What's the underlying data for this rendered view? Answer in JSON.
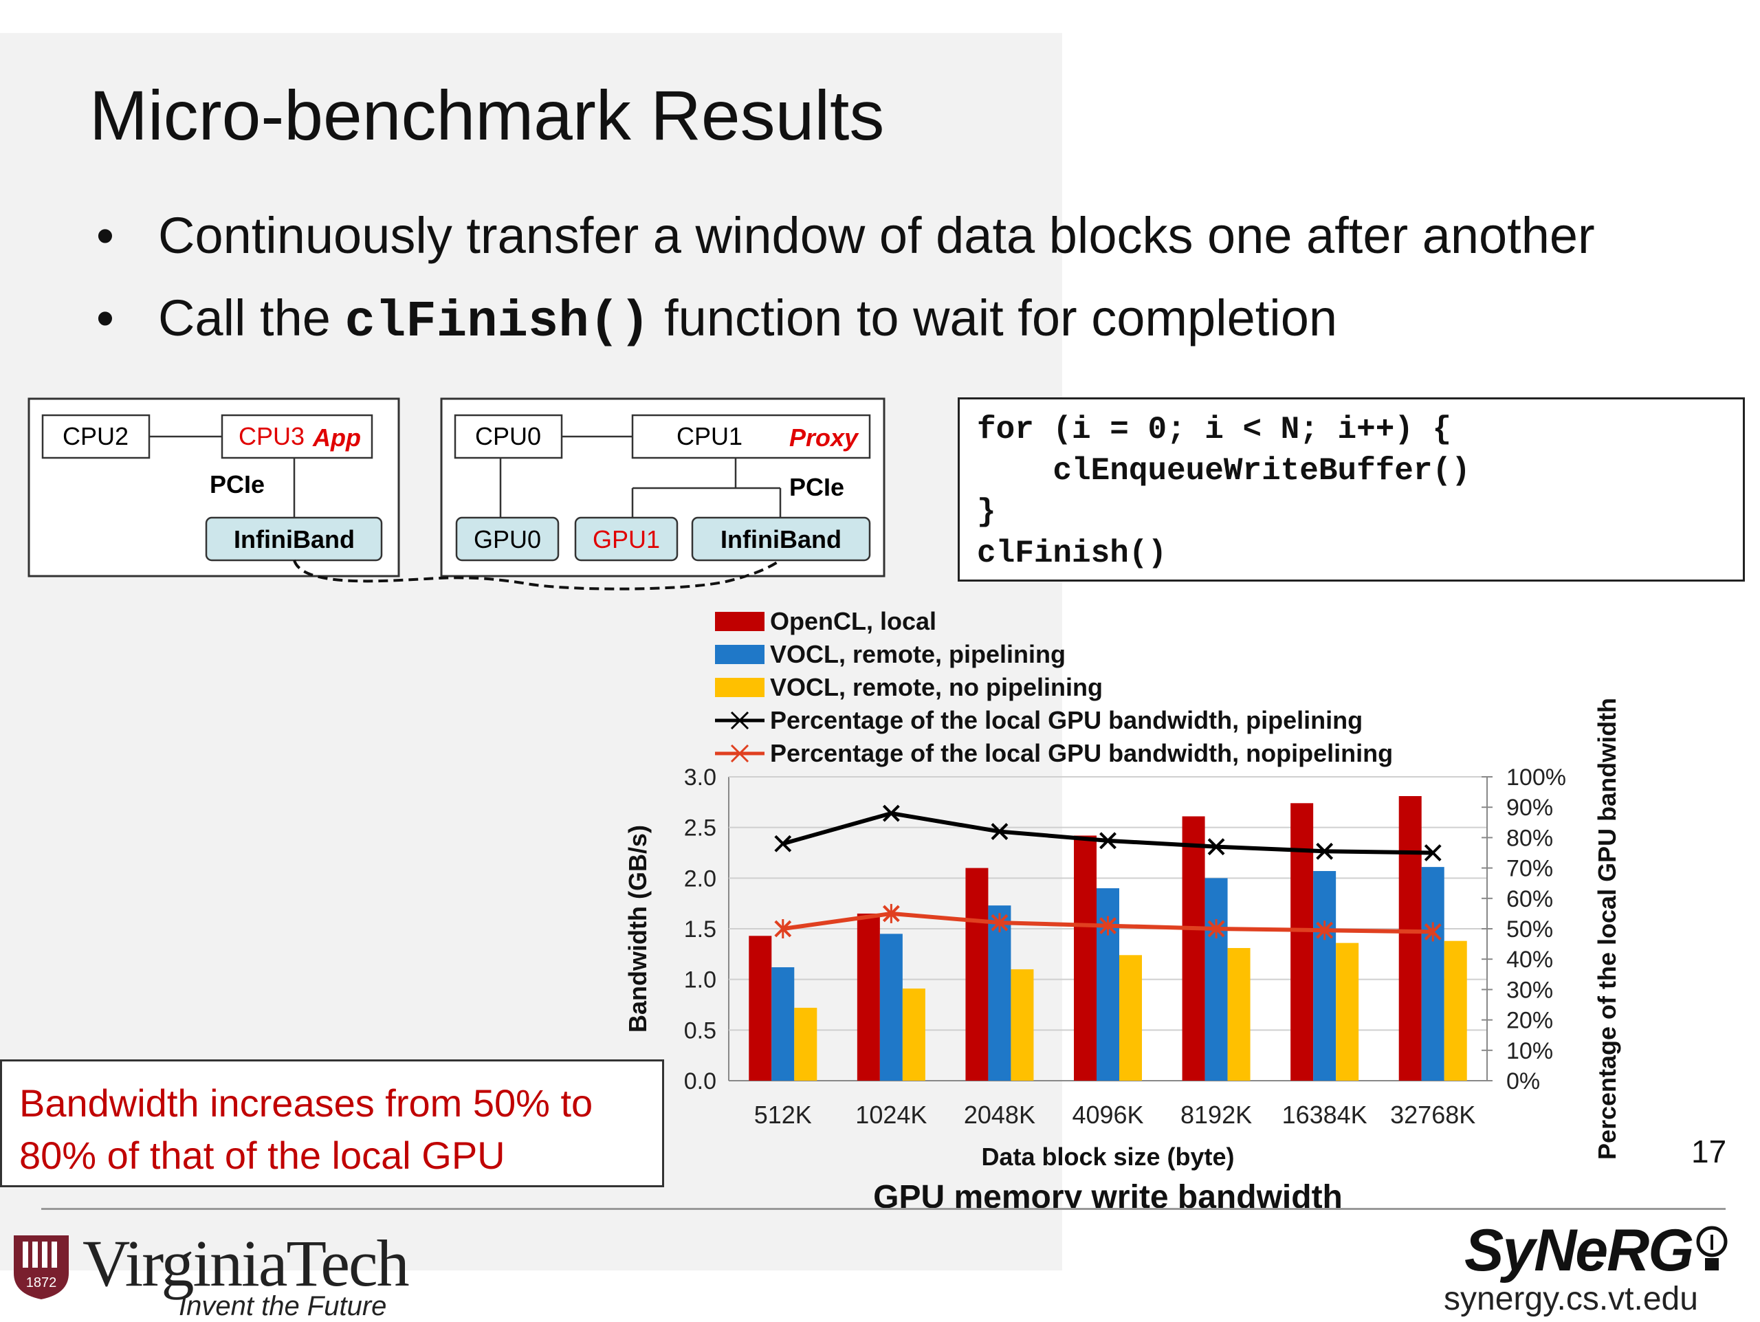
{
  "slide": {
    "title": "Micro-benchmark Results",
    "bullets": [
      {
        "text": "Continuously transfer a window of data blocks one after another"
      },
      {
        "pre": "Call the ",
        "code": "clFinish()",
        "post": " function to wait for completion"
      }
    ],
    "page_number": "17"
  },
  "diagram": {
    "left_node": {
      "cpu2": "CPU2",
      "cpu3": "CPU3",
      "app_tag": "App",
      "pcie": "PCIe",
      "ib": "InfiniBand"
    },
    "right_node": {
      "cpu0": "CPU0",
      "cpu1": "CPU1",
      "proxy_tag": "Proxy",
      "pcie": "PCIe",
      "gpu0": "GPU0",
      "gpu1": "GPU1",
      "ib": "InfiniBand"
    },
    "colors": {
      "red": "#e00000",
      "box_fill": "#cde6eb",
      "box_stroke": "#333333"
    }
  },
  "code": {
    "lines": [
      "for (i = 0; i < N; i++) {",
      "    clEnqueueWriteBuffer()",
      "}",
      "clFinish()"
    ]
  },
  "chart_data": {
    "type": "bar",
    "title": "GPU memory write bandwidth",
    "xlabel": "Data block size (byte)",
    "ylabel": "Bandwidth (GB/s)",
    "y2label": "Percentage of  the local GPU bandwidth",
    "categories": [
      "512K",
      "1024K",
      "2048K",
      "4096K",
      "8192K",
      "16384K",
      "32768K"
    ],
    "ylim": [
      0,
      3.0
    ],
    "yticks": [
      "0.0",
      "0.5",
      "1.0",
      "1.5",
      "2.0",
      "2.5",
      "3.0"
    ],
    "y2lim": [
      0,
      100
    ],
    "y2ticks": [
      "0%",
      "10%",
      "20%",
      "30%",
      "40%",
      "50%",
      "60%",
      "70%",
      "80%",
      "90%",
      "100%"
    ],
    "legend_position": "top",
    "series": [
      {
        "name": "OpenCL, local",
        "kind": "bar",
        "axis": "left",
        "color": "#c00000",
        "values": [
          1.43,
          1.65,
          2.1,
          2.42,
          2.61,
          2.74,
          2.81
        ]
      },
      {
        "name": "VOCL, remote, pipelining",
        "kind": "bar",
        "axis": "left",
        "color": "#1f78c8",
        "values": [
          1.12,
          1.45,
          1.73,
          1.9,
          2.0,
          2.07,
          2.11
        ]
      },
      {
        "name": "VOCL, remote, no pipelining",
        "kind": "bar",
        "axis": "left",
        "color": "#ffc000",
        "values": [
          0.72,
          0.91,
          1.1,
          1.24,
          1.31,
          1.36,
          1.38
        ]
      },
      {
        "name": "Percentage of the local GPU bandwidth, pipelining",
        "kind": "line",
        "axis": "right",
        "color": "#000000",
        "values": [
          78,
          88,
          82,
          79,
          77,
          75.5,
          75
        ]
      },
      {
        "name": "Percentage of the local GPU bandwidth, nopipelining",
        "kind": "line",
        "axis": "right",
        "color": "#e04020",
        "values": [
          50,
          55,
          52,
          51,
          50,
          49.5,
          49
        ]
      }
    ]
  },
  "callout": {
    "line1": "Bandwidth increases from 50% to",
    "line2": "80% of that of the local GPU"
  },
  "footer": {
    "vt_name": "VirginiaTech",
    "vt_tagline": "Invent the Future",
    "vt_shield_year": "1872",
    "synergy_logo": "SyNeRG",
    "synergy_url": "synergy.cs.vt.edu"
  }
}
